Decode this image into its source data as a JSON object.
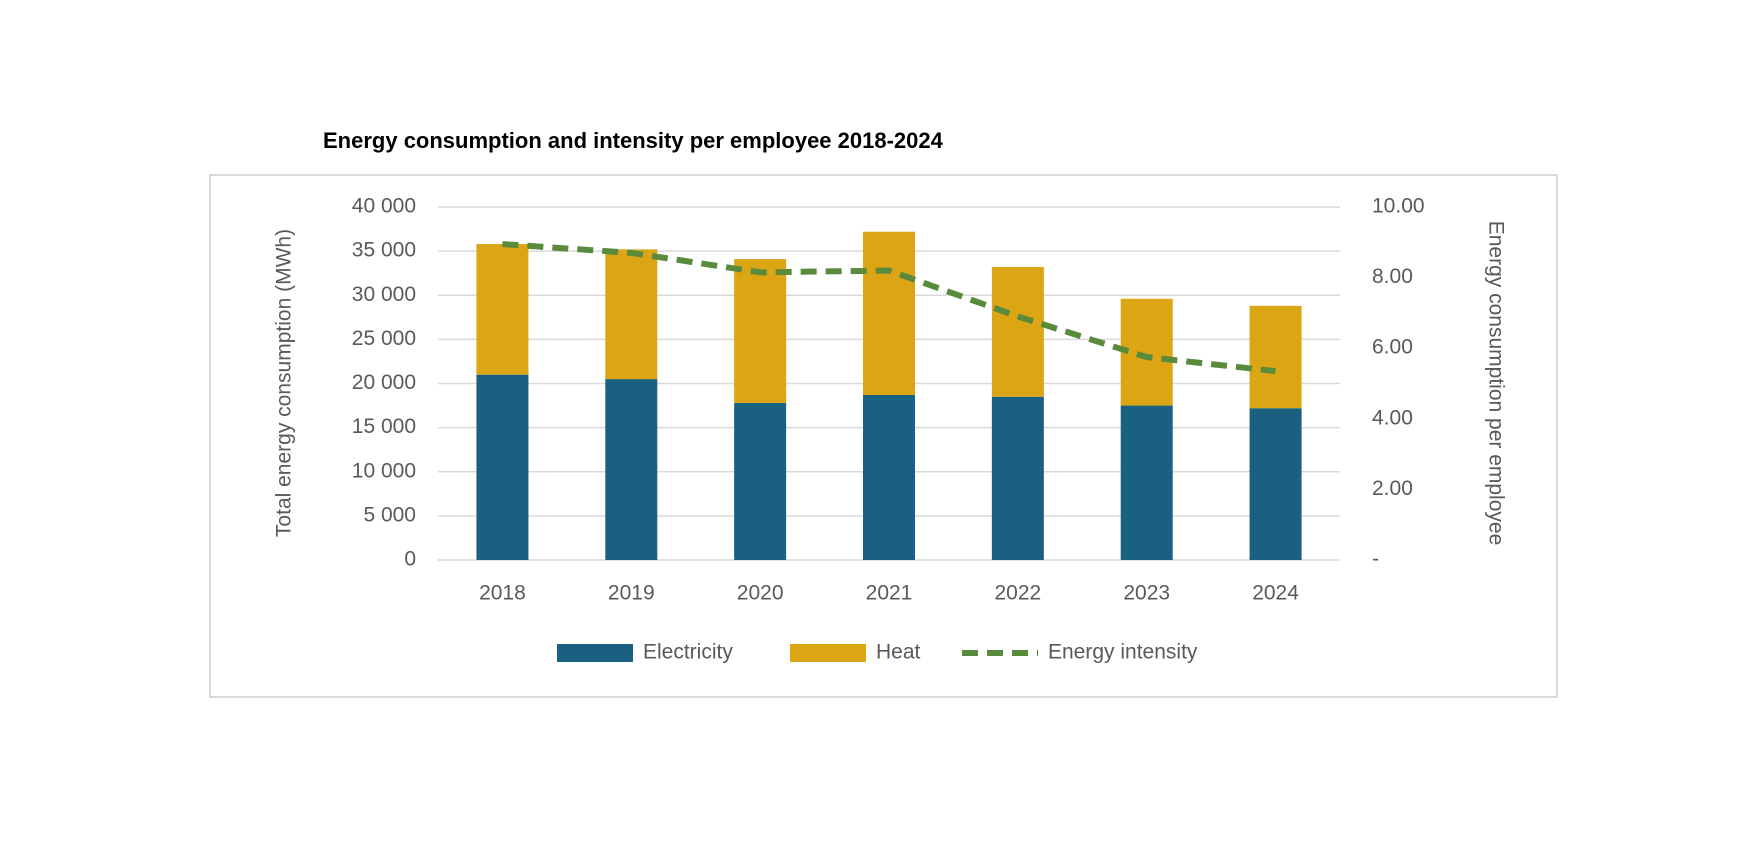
{
  "chart_data": {
    "type": "bar",
    "stacked": true,
    "title": "Energy consumption and intensity per employee 2018-2024",
    "y_label": "Total energy consumption (MWh)",
    "y2_label": "Energy consumption per employee",
    "categories": [
      "2018",
      "2019",
      "2020",
      "2021",
      "2022",
      "2023",
      "2024"
    ],
    "series": [
      {
        "name": "Electricity",
        "color": "#1a6080",
        "values": [
          21000,
          20500,
          17800,
          18700,
          18500,
          17500,
          17200
        ]
      },
      {
        "name": "Heat",
        "color": "#dba514",
        "values": [
          14800,
          14700,
          16300,
          18500,
          14700,
          12100,
          11600
        ]
      },
      {
        "name": "Energy intensity",
        "color": "#5a8a3c",
        "type": "line",
        "axis": "y2",
        "values": [
          8.95,
          8.7,
          8.15,
          8.2,
          6.9,
          5.75,
          5.35
        ]
      }
    ],
    "ylim": [
      0,
      40000
    ],
    "yticks": [
      0,
      {
        "value": 5000,
        "label": "5 000"
      },
      {
        "value": 10000,
        "label": "10 000"
      },
      {
        "value": 15000,
        "label": "15 000"
      },
      {
        "value": 20000,
        "label": "20 000"
      },
      {
        "value": 25000,
        "label": "25 000"
      },
      {
        "value": 30000,
        "label": "30 000"
      },
      {
        "value": 35000,
        "label": "35 000"
      },
      {
        "value": 40000,
        "label": "40 000"
      }
    ],
    "y2lim": [
      0,
      10
    ],
    "y2ticks": [
      {
        "value": 0,
        "label": "-"
      },
      {
        "value": 2,
        "label": "2.00"
      },
      {
        "value": 4,
        "label": "4.00"
      },
      {
        "value": 6,
        "label": "6.00"
      },
      {
        "value": 8,
        "label": "8.00"
      },
      {
        "value": 10,
        "label": "10.00"
      }
    ],
    "grid": true,
    "legend": "bottom"
  }
}
